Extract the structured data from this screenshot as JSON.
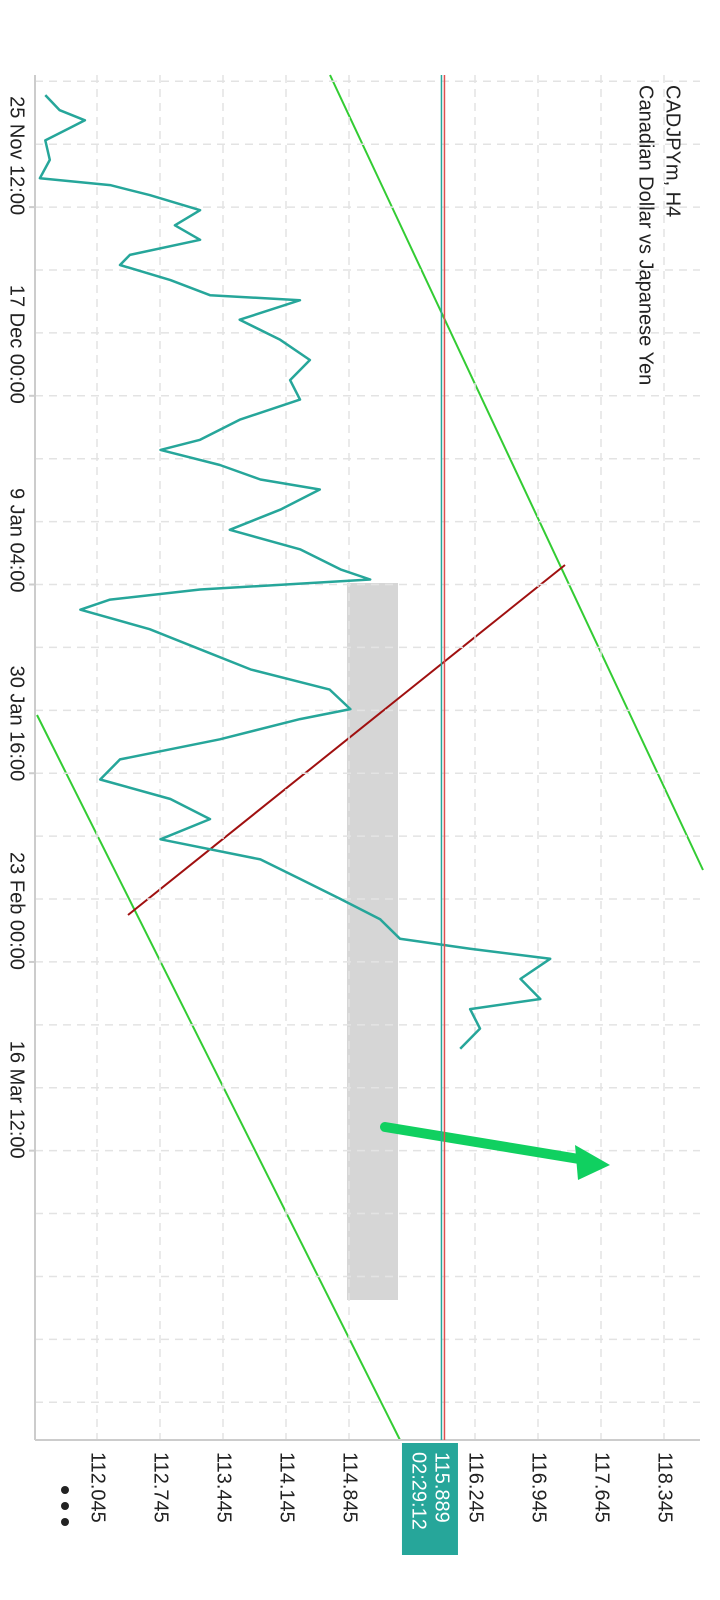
{
  "chart_data": {
    "type": "line",
    "title": "CADJPYm, H4",
    "subtitle": "Canadian Dollar vs Japanese Yen",
    "color": "#26a69a",
    "x": [
      -1.78,
      -1.54,
      -1.38,
      -1.06,
      -0.75,
      -0.46,
      -0.35,
      -0.19,
      0.05,
      0.29,
      0.52,
      0.76,
      0.92,
      1.16,
      1.4,
      1.48,
      1.79,
      2.11,
      2.43,
      2.75,
      3.06,
      3.38,
      3.7,
      3.86,
      4.1,
      4.33,
      4.49,
      4.81,
      5.13,
      5.44,
      5.76,
      5.92,
      6.08,
      6.24,
      6.4,
      6.71,
      7.03,
      7.35,
      7.67,
      7.98,
      8.14,
      8.46,
      8.78,
      9.1,
      9.41,
      9.73,
      10.05,
      10.37,
      10.68,
      11.0,
      11.32,
      11.63,
      11.79,
      11.95,
      12.27,
      12.59,
      12.75,
      13.06,
      13.38
    ],
    "values": [
      111.47,
      111.63,
      111.91,
      111.47,
      111.52,
      111.41,
      112.19,
      112.63,
      113.19,
      112.91,
      113.19,
      112.41,
      112.3,
      112.86,
      113.3,
      114.3,
      113.63,
      114.08,
      114.41,
      114.19,
      114.3,
      113.63,
      113.19,
      112.75,
      113.41,
      113.86,
      114.52,
      114.08,
      113.52,
      114.3,
      114.75,
      115.08,
      113.19,
      112.19,
      111.86,
      112.63,
      113.19,
      113.75,
      114.63,
      114.86,
      114.3,
      113.41,
      112.3,
      112.08,
      112.86,
      113.3,
      112.75,
      113.86,
      114.3,
      114.75,
      115.19,
      115.41,
      116.19,
      117.08,
      116.75,
      116.97,
      116.19,
      116.3,
      116.08
    ],
    "xlim": [
      -2.1,
      19.6
    ],
    "xticks": [
      {
        "value": 0,
        "label": "25 Nov 12:00"
      },
      {
        "value": 3,
        "label": "17 Dec 00:00"
      },
      {
        "value": 6,
        "label": "9 Jan 04:00"
      },
      {
        "value": 9,
        "label": "30 Jan 16:00"
      },
      {
        "value": 12,
        "label": "23 Feb 00:00"
      },
      {
        "value": 15,
        "label": "16 Mar 12:00"
      }
    ],
    "xgrid": [
      -2,
      -1,
      0,
      1,
      2,
      3,
      4,
      5,
      6,
      7,
      8,
      9,
      10,
      11,
      12,
      13,
      14,
      15,
      16,
      17,
      18,
      19
    ],
    "ylim": [
      111.356,
      118.745
    ],
    "yticks": [
      112.045,
      112.745,
      113.445,
      114.145,
      114.845,
      116.245,
      116.945,
      117.645,
      118.345
    ],
    "grid": true,
    "last_price": 115.889,
    "last_price_color": "#26a69a",
    "timer": "02:29:12"
  }
}
